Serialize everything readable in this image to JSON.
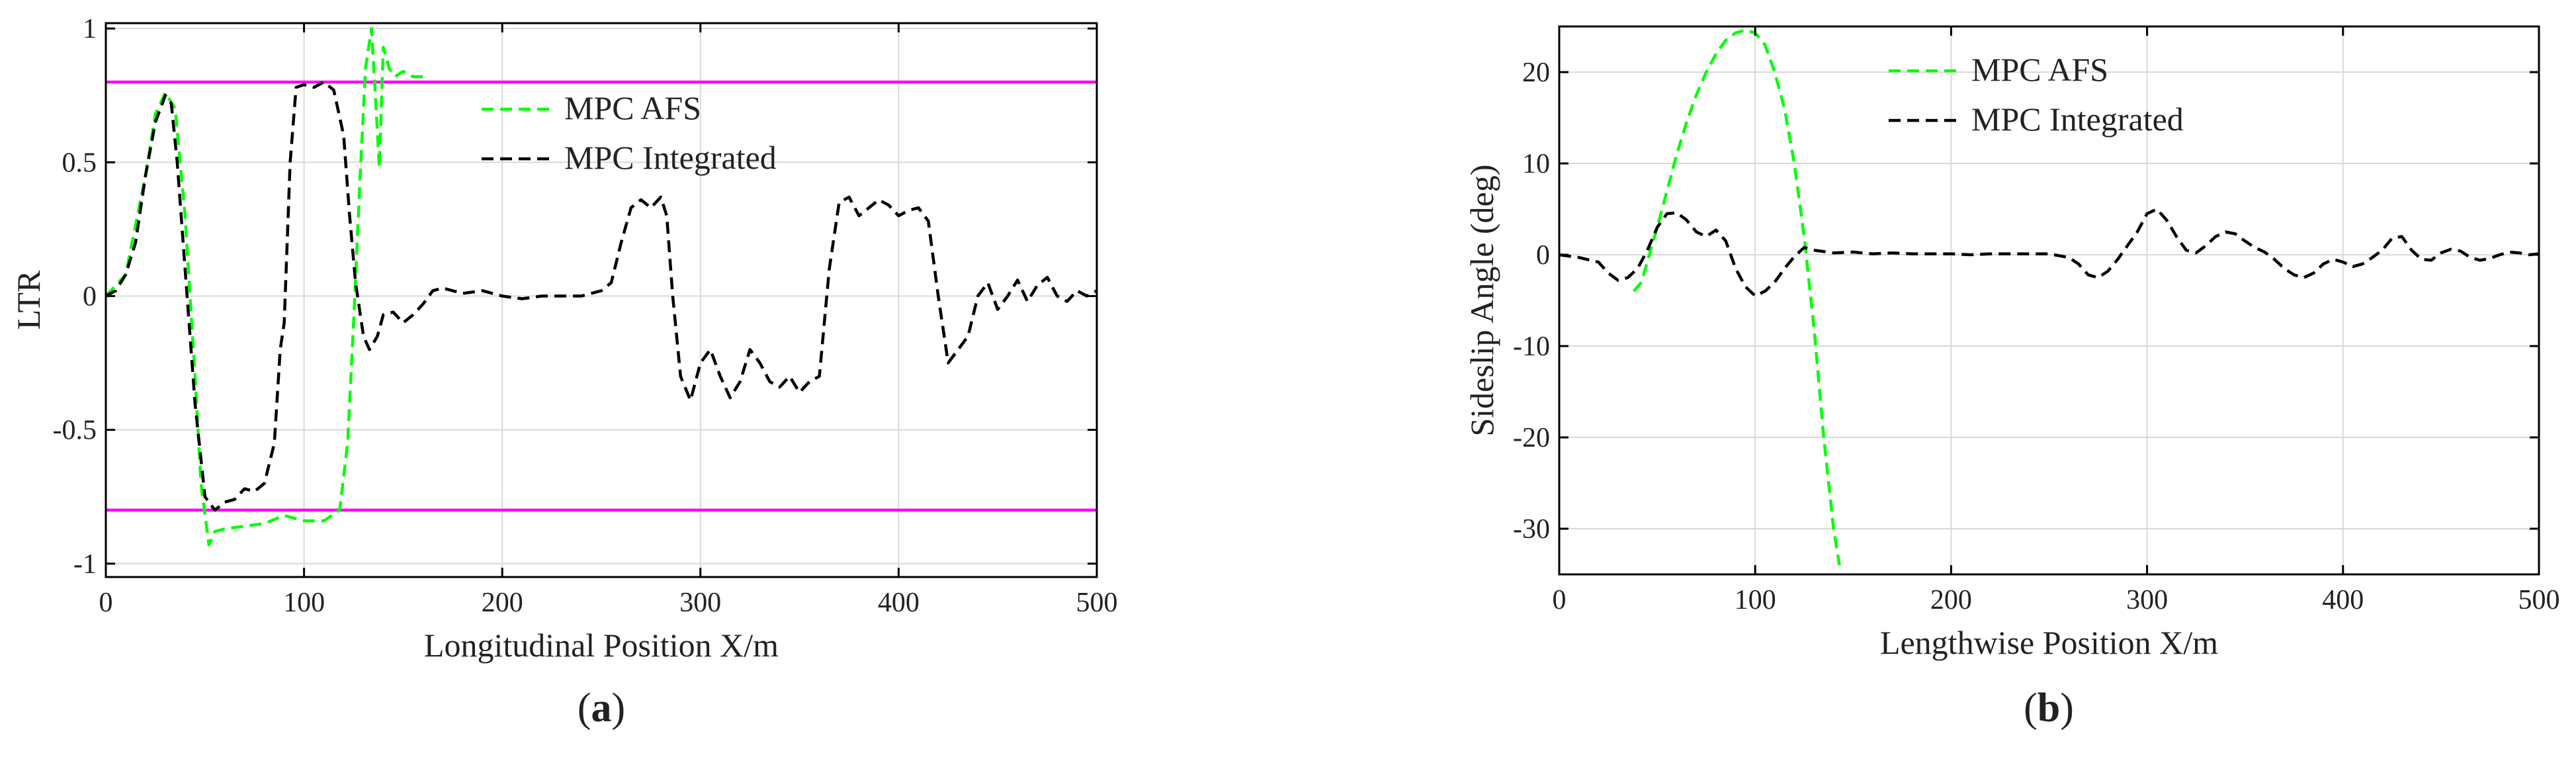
{
  "chart_data": [
    {
      "type": "line",
      "panel_label": "a",
      "xlabel": "Longitudinal Position X/m",
      "ylabel": "LTR",
      "xlim": [
        0,
        500
      ],
      "ylim": [
        -1.05,
        1.02
      ],
      "xticks": [
        0,
        100,
        200,
        300,
        400,
        500
      ],
      "yticks": [
        -1,
        -0.5,
        0,
        0.5,
        1
      ],
      "yticklabels": [
        "-1",
        "-0.5",
        "0",
        "0.5",
        "1"
      ],
      "grid": true,
      "legend_position": "upper-center",
      "legend_entries": [
        "MPC AFS",
        "MPC Integrated"
      ],
      "hlines": [
        {
          "y": 0.8,
          "color": "#ff00ff"
        },
        {
          "y": -0.8,
          "color": "#ff00ff"
        }
      ],
      "series": [
        {
          "name": "MPC AFS",
          "color": "#00ff00",
          "dash": "dashed",
          "x": [
            0,
            10,
            20,
            25,
            30,
            35,
            40,
            45,
            48,
            52,
            55,
            60,
            70,
            80,
            90,
            100,
            110,
            118,
            122,
            125,
            128,
            131,
            134,
            136,
            138,
            140,
            143,
            146,
            150,
            155,
            160
          ],
          "y": [
            0,
            0.08,
            0.45,
            0.68,
            0.76,
            0.7,
            0.3,
            -0.3,
            -0.7,
            -0.93,
            -0.88,
            -0.87,
            -0.86,
            -0.85,
            -0.82,
            -0.84,
            -0.84,
            -0.8,
            -0.55,
            -0.1,
            0.4,
            0.85,
            1.0,
            0.75,
            0.48,
            0.93,
            0.85,
            0.82,
            0.84,
            0.82,
            0.82
          ]
        },
        {
          "name": "MPC Integrated",
          "color": "#000000",
          "dash": "dashed",
          "x": [
            0,
            5,
            10,
            15,
            20,
            25,
            30,
            33,
            36,
            40,
            45,
            50,
            55,
            60,
            65,
            70,
            75,
            80,
            85,
            88,
            90,
            93,
            96,
            100,
            105,
            110,
            115,
            120,
            123,
            126,
            130,
            133,
            137,
            140,
            145,
            150,
            155,
            160,
            165,
            170,
            180,
            190,
            200,
            210,
            220,
            230,
            240,
            250,
            255,
            260,
            265,
            270,
            275,
            280,
            283,
            286,
            290,
            295,
            300,
            305,
            310,
            315,
            320,
            325,
            330,
            335,
            340,
            345,
            350,
            355,
            360,
            365,
            370,
            375,
            380,
            385,
            390,
            395,
            400,
            405,
            410,
            415,
            420,
            425,
            430,
            435,
            440,
            445,
            450,
            455,
            460,
            465,
            470,
            475,
            480,
            485,
            490,
            495,
            500
          ],
          "y": [
            0,
            0.02,
            0.08,
            0.2,
            0.45,
            0.65,
            0.75,
            0.72,
            0.5,
            0.1,
            -0.4,
            -0.75,
            -0.8,
            -0.77,
            -0.76,
            -0.72,
            -0.73,
            -0.7,
            -0.55,
            -0.2,
            -0.1,
            0.5,
            0.78,
            0.79,
            0.78,
            0.8,
            0.77,
            0.6,
            0.3,
            0.05,
            -0.15,
            -0.2,
            -0.15,
            -0.07,
            -0.06,
            -0.1,
            -0.07,
            -0.03,
            0.02,
            0.03,
            0.01,
            0.02,
            0.0,
            -0.01,
            0.0,
            0.0,
            0.0,
            0.02,
            0.05,
            0.2,
            0.33,
            0.36,
            0.33,
            0.37,
            0.3,
            0.0,
            -0.3,
            -0.39,
            -0.25,
            -0.2,
            -0.3,
            -0.38,
            -0.32,
            -0.2,
            -0.25,
            -0.32,
            -0.34,
            -0.3,
            -0.36,
            -0.32,
            -0.3,
            0.1,
            0.35,
            0.37,
            0.3,
            0.33,
            0.36,
            0.34,
            0.3,
            0.32,
            0.33,
            0.28,
            0.0,
            -0.25,
            -0.2,
            -0.15,
            0.0,
            0.05,
            -0.05,
            0.0,
            0.06,
            -0.02,
            0.04,
            0.07,
            0.0,
            -0.02,
            0.02,
            0.0,
            0.02
          ]
        }
      ]
    },
    {
      "type": "line",
      "panel_label": "b",
      "xlabel": "Lengthwise Position X/m",
      "ylabel": "Sideslip Angle (deg)",
      "xlim": [
        0,
        500
      ],
      "ylim": [
        -35,
        25
      ],
      "xticks": [
        0,
        100,
        200,
        300,
        400,
        500
      ],
      "yticks": [
        -30,
        -20,
        -10,
        0,
        10,
        20
      ],
      "yticklabels": [
        "-30",
        "-20",
        "-10",
        "0",
        "10",
        "20"
      ],
      "grid": true,
      "legend_position": "upper-center",
      "legend_entries": [
        "MPC AFS",
        "MPC Integrated"
      ],
      "series": [
        {
          "name": "MPC AFS",
          "color": "#00ff00",
          "dash": "dashed",
          "x": [
            38,
            42,
            46,
            50,
            55,
            60,
            65,
            70,
            75,
            80,
            85,
            90,
            95,
            100,
            105,
            110,
            115,
            120,
            125,
            130,
            135,
            140,
            143
          ],
          "y": [
            -4,
            -3,
            0,
            3,
            7,
            11,
            14.5,
            17.5,
            20,
            22,
            23.5,
            24.3,
            24.6,
            24.3,
            23,
            20,
            16,
            10,
            2,
            -8,
            -20,
            -30,
            -34
          ]
        },
        {
          "name": "MPC Integrated",
          "color": "#000000",
          "dash": "dashed",
          "x": [
            0,
            10,
            20,
            25,
            30,
            35,
            40,
            45,
            50,
            55,
            60,
            65,
            70,
            75,
            80,
            85,
            90,
            95,
            100,
            105,
            110,
            115,
            120,
            125,
            130,
            140,
            150,
            160,
            170,
            180,
            190,
            200,
            210,
            220,
            230,
            240,
            250,
            260,
            265,
            270,
            275,
            280,
            285,
            290,
            295,
            300,
            305,
            310,
            315,
            320,
            325,
            330,
            335,
            340,
            345,
            350,
            355,
            360,
            365,
            370,
            375,
            380,
            385,
            390,
            395,
            400,
            405,
            410,
            415,
            420,
            425,
            430,
            435,
            440,
            445,
            450,
            455,
            460,
            465,
            470,
            475,
            480,
            485,
            490,
            495,
            500
          ],
          "y": [
            0,
            -0.3,
            -0.8,
            -2,
            -2.8,
            -2.5,
            -1.5,
            0.5,
            3,
            4.5,
            4.6,
            3.8,
            2.5,
            2,
            2.7,
            1.5,
            -1.5,
            -3.5,
            -4.5,
            -4,
            -3,
            -1.5,
            -0.2,
            0.8,
            0.5,
            0.2,
            0.3,
            0.1,
            0.2,
            0.1,
            0.1,
            0.1,
            0.0,
            0.1,
            0.1,
            0.1,
            0.1,
            -0.3,
            -1,
            -2.2,
            -2.5,
            -1.8,
            -0.5,
            1,
            2.5,
            4.5,
            5,
            3.8,
            2,
            0.5,
            0.2,
            1,
            2,
            2.5,
            2.3,
            1.5,
            0.8,
            0.3,
            -0.5,
            -1.5,
            -2.2,
            -2.5,
            -2,
            -1,
            -0.5,
            -0.8,
            -1.3,
            -1,
            -0.3,
            0.5,
            1.8,
            2,
            0.5,
            -0.5,
            -0.6,
            0.2,
            0.6,
            0.4,
            -0.3,
            -0.6,
            -0.4,
            0.0,
            0.3,
            0.2,
            0.0,
            0.1
          ]
        }
      ]
    }
  ]
}
